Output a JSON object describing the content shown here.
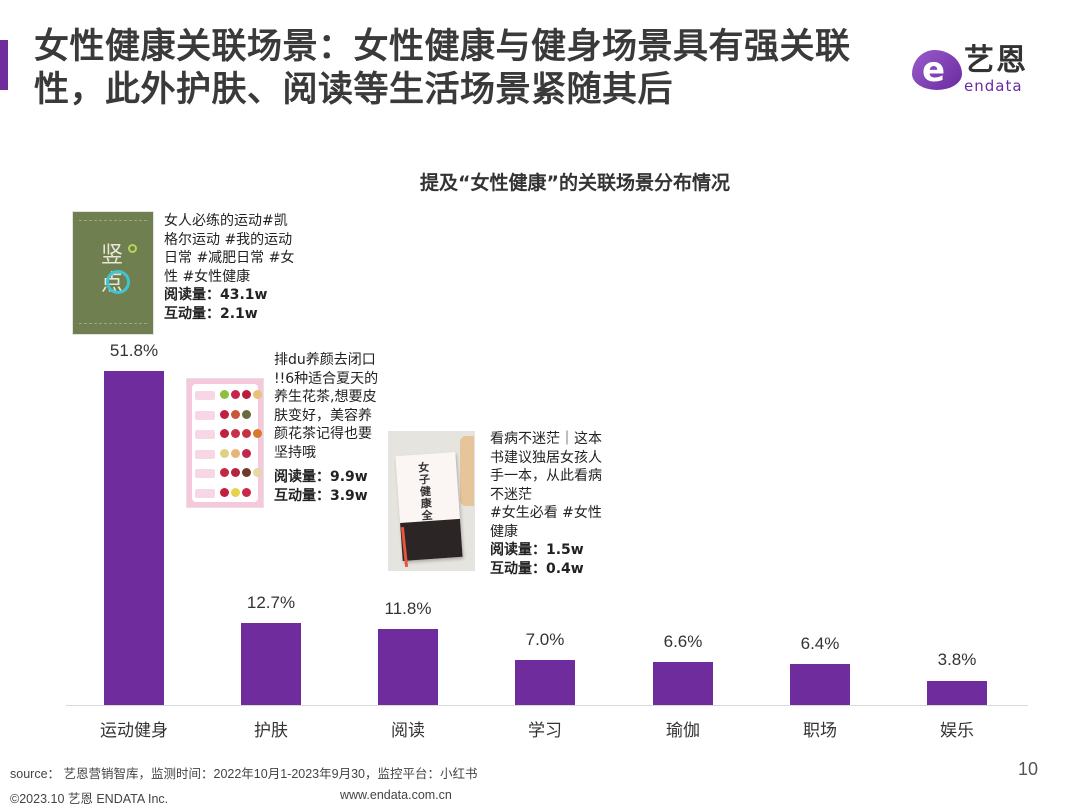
{
  "header": {
    "title": "女性健康关联场景：女性健康与健身场景具有强关联性，此外护肤、阅读等生活场景紧随其后",
    "accent_color": "#6e2c9c"
  },
  "logo": {
    "mark": "e",
    "name_cn": "艺恩",
    "name_en": "endata"
  },
  "chart_data": {
    "type": "bar",
    "title": "提及“女性健康”的关联场景分布情况",
    "categories": [
      "运动健身",
      "护肤",
      "阅读",
      "学习",
      "瑜伽",
      "职场",
      "娱乐"
    ],
    "values": [
      51.8,
      12.7,
      11.8,
      7.0,
      6.6,
      6.4,
      3.8
    ],
    "value_labels": [
      "51.8%",
      "12.7%",
      "11.8%",
      "7.0%",
      "6.6%",
      "6.4%",
      "3.8%"
    ],
    "unit": "%",
    "xlabel": "",
    "ylabel": "",
    "ylim": [
      0,
      55
    ],
    "grid": false,
    "legend": "none",
    "bar_color": "#6e2c9c",
    "annotations": [
      {
        "category": "运动健身",
        "post_text": "女人必练的运动#凯格尔运动 #我的运动日常 #减肥日常 #女性 #女性健康",
        "read_count": "阅读量：43.1w",
        "interaction_count": "互动量：2.1w",
        "thumbnail": "竖点"
      },
      {
        "category": "护肤",
        "post_text": "排du养颜去闭口!!6种适合夏天的养生花茶,想要皮肤变好，美容养颜花茶记得也要坚持哦",
        "read_count": "阅读量：9.9w",
        "interaction_count": "互动量：3.9w",
        "thumbnail": "flower-tea-chart"
      },
      {
        "category": "阅读",
        "post_text": "看病不迷茫｜这本书建议独居女孩人手一本，从此看病不迷茫 #女生必看 #女性健康",
        "read_count": "阅读量：1.5w",
        "interaction_count": "互动量：0.4w",
        "thumbnail": "女子健康全书"
      }
    ]
  },
  "notes": [
    {
      "lines": [
        "女人必练的运动#凯",
        "格尔运动 #我的运动",
        "日常 #减肥日常 #女",
        "性 #女性健康"
      ],
      "read": "阅读量：43.1w",
      "interact": "互动量：2.1w"
    },
    {
      "lines": [
        "排du养颜去闭口",
        "!!6种适合夏天的",
        "养生花茶,想要皮",
        "肤变好，美容养",
        "颜花茶记得也要",
        "坚持哦"
      ],
      "read": "阅读量：9.9w",
      "interact": "互动量：3.9w"
    },
    {
      "lines": [
        "看病不迷茫｜这本",
        "书建议独居女孩人",
        "手一本，从此看病",
        "不迷茫",
        "#女生必看 #女性",
        "健康"
      ],
      "read": "阅读量：1.5w",
      "interact": "互动量：0.4w"
    }
  ],
  "thumbnails": {
    "t1_text": "竖点",
    "t3_title": "女子健康全书"
  },
  "footer": {
    "source": "source： 艺恩营销智库，监测时间：2022年10月1-2023年9月30，监控平台：小红书",
    "copyright": "©2023.10  艺恩 ENDATA Inc.",
    "url": "www.endata.com.cn",
    "page_number": "10"
  }
}
